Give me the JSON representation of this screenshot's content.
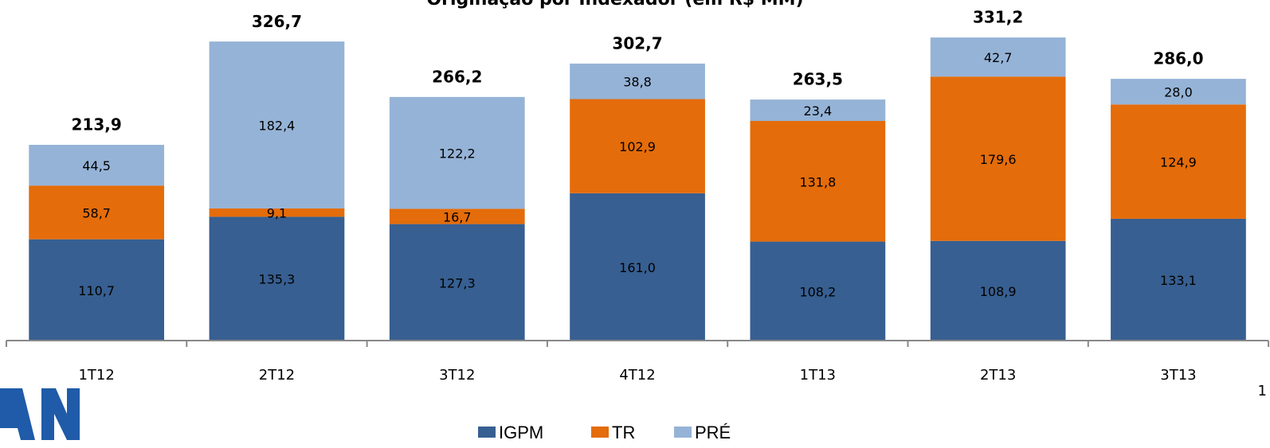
{
  "chart_data": {
    "type": "stacked_bar",
    "title": "Originação por Indexador (em R$ MM)",
    "categories": [
      "1T12",
      "2T12",
      "3T12",
      "4T12",
      "1T13",
      "2T13",
      "3T13"
    ],
    "series": [
      {
        "name": "IGPM",
        "color": "#375f91",
        "values": [
          110.7,
          135.3,
          127.3,
          161.0,
          108.2,
          108.9,
          133.1
        ],
        "value_labels": [
          "110,7",
          "135,3",
          "127,3",
          "161,0",
          "108,2",
          "108,9",
          "133,1"
        ]
      },
      {
        "name": "TR",
        "color": "#e46c0a",
        "values": [
          58.7,
          9.1,
          16.7,
          102.9,
          131.8,
          179.6,
          124.9
        ],
        "value_labels": [
          "58,7",
          "9,1",
          "16,7",
          "102,9",
          "131,8",
          "179,6",
          "124,9"
        ]
      },
      {
        "name": "PRÉ",
        "color": "#95b3d7",
        "values": [
          44.5,
          182.4,
          122.2,
          38.8,
          23.4,
          42.7,
          28.0
        ],
        "value_labels": [
          "44,5",
          "182,4",
          "122,2",
          "38,8",
          "23,4",
          "42,7",
          "28,0"
        ]
      }
    ],
    "totals": [
      213.9,
      326.7,
      266.2,
      302.7,
      263.5,
      331.2,
      286.0
    ],
    "total_labels": [
      "213,9",
      "326,7",
      "266,2",
      "302,7",
      "263,5",
      "331,2",
      "286,0"
    ],
    "ylim": [
      0,
      350
    ],
    "legend": "bottom",
    "page_number": "1"
  }
}
